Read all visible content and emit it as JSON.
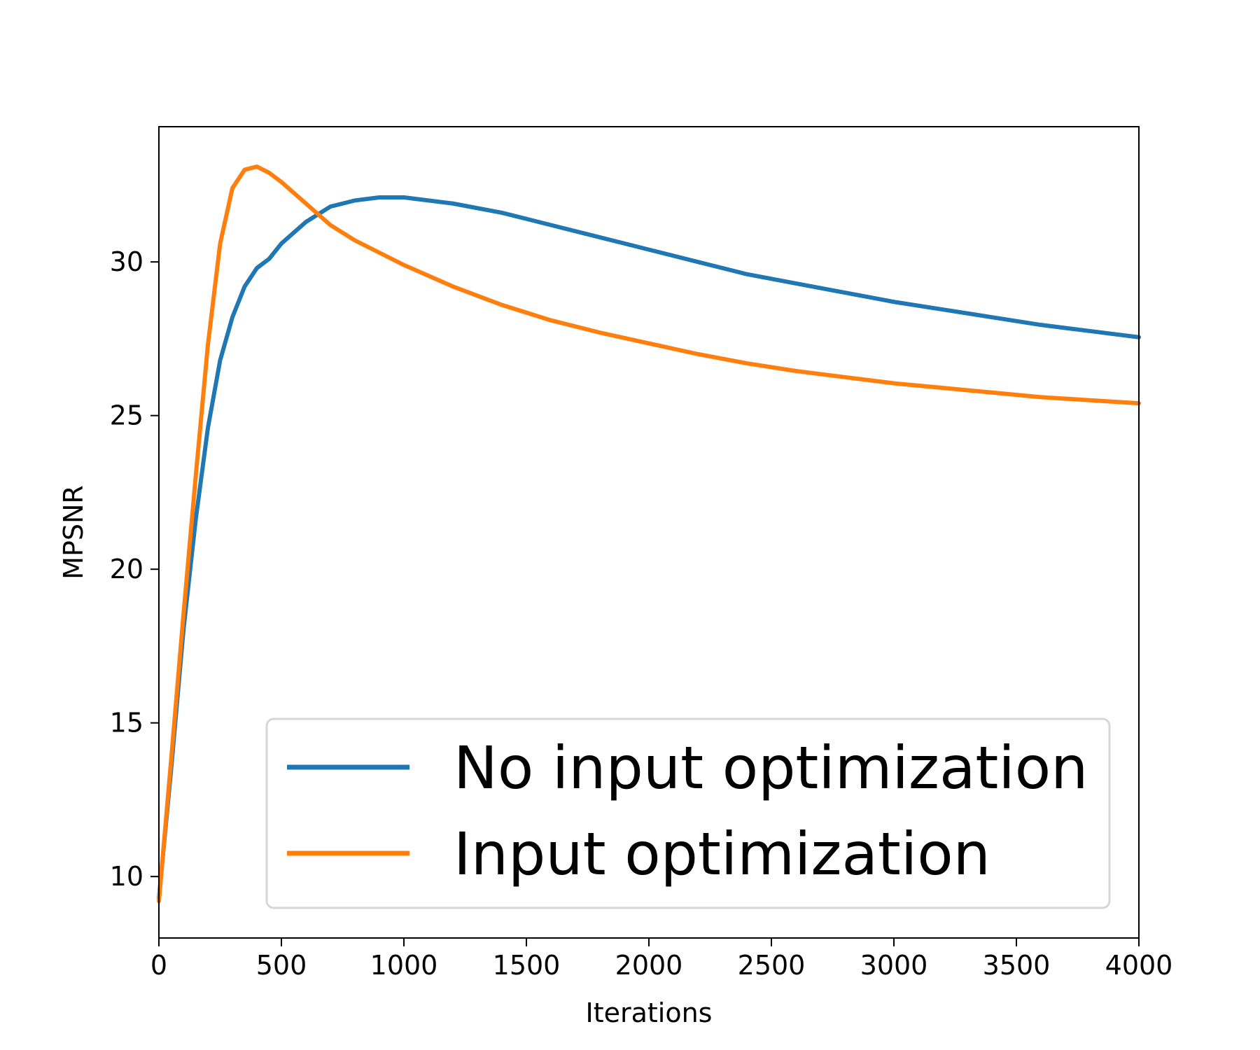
{
  "chart_data": {
    "type": "line",
    "title": "",
    "xlabel": "Iterations",
    "ylabel": "MPSNR",
    "xlim": [
      0,
      4000
    ],
    "ylim": [
      8,
      34.4
    ],
    "grid": false,
    "legend_position": "bottom-right",
    "xticks": [
      {
        "value": 0,
        "label": "0"
      },
      {
        "value": 500,
        "label": "500"
      },
      {
        "value": 1000,
        "label": "1000"
      },
      {
        "value": 1500,
        "label": "1500"
      },
      {
        "value": 2000,
        "label": "2000"
      },
      {
        "value": 2500,
        "label": "2500"
      },
      {
        "value": 3000,
        "label": "3000"
      },
      {
        "value": 3500,
        "label": "3500"
      },
      {
        "value": 4000,
        "label": "4000"
      }
    ],
    "yticks": [
      {
        "value": 10,
        "label": "10"
      },
      {
        "value": 15,
        "label": "15"
      },
      {
        "value": 20,
        "label": "20"
      },
      {
        "value": 25,
        "label": "25"
      },
      {
        "value": 30,
        "label": "30"
      }
    ],
    "series": [
      {
        "name": "No input optimization",
        "color": "#1f77b4",
        "x": [
          0,
          50,
          100,
          150,
          200,
          250,
          300,
          350,
          400,
          450,
          500,
          600,
          700,
          800,
          900,
          1000,
          1100,
          1200,
          1400,
          1600,
          1800,
          2000,
          2200,
          2400,
          2600,
          2800,
          3000,
          3200,
          3400,
          3600,
          3800,
          4000
        ],
        "y": [
          9.3,
          13.5,
          18.0,
          21.6,
          24.6,
          26.8,
          28.2,
          29.2,
          29.8,
          30.1,
          30.6,
          31.3,
          31.8,
          32.0,
          32.1,
          32.1,
          32.0,
          31.9,
          31.6,
          31.2,
          30.8,
          30.4,
          30.0,
          29.6,
          29.3,
          29.0,
          28.7,
          28.45,
          28.2,
          27.95,
          27.75,
          27.55
        ]
      },
      {
        "name": "Input optimization",
        "color": "#ff7f0e",
        "x": [
          0,
          50,
          100,
          150,
          200,
          250,
          300,
          350,
          400,
          450,
          500,
          600,
          700,
          800,
          900,
          1000,
          1200,
          1400,
          1600,
          1800,
          2000,
          2200,
          2400,
          2600,
          2800,
          3000,
          3200,
          3400,
          3600,
          3800,
          4000
        ],
        "y": [
          9.2,
          13.8,
          18.5,
          23.0,
          27.3,
          30.6,
          32.4,
          33.0,
          33.1,
          32.9,
          32.6,
          31.9,
          31.2,
          30.7,
          30.3,
          29.9,
          29.2,
          28.6,
          28.1,
          27.7,
          27.35,
          27.0,
          26.7,
          26.45,
          26.25,
          26.05,
          25.9,
          25.75,
          25.6,
          25.5,
          25.4
        ]
      }
    ]
  }
}
